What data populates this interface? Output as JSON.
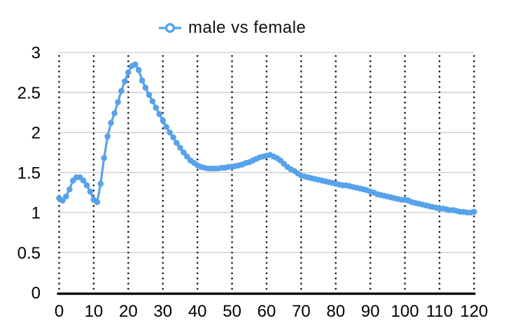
{
  "chart_data": {
    "type": "line",
    "title": "",
    "legend": {
      "label": "male vs female",
      "position": "top-center",
      "marker": "hollow-circle-on-line"
    },
    "xlabel": "",
    "ylabel": "",
    "xlim": [
      0,
      120
    ],
    "ylim": [
      0,
      3
    ],
    "x_ticks": [
      0,
      10,
      20,
      30,
      40,
      50,
      60,
      70,
      80,
      90,
      100,
      110,
      120
    ],
    "y_ticks": [
      "0",
      "0.5",
      "1",
      "1.5",
      "2",
      "2.5",
      "3"
    ],
    "grid": {
      "horizontal": "solid light gray at each 0.5",
      "vertical": "dotted black at each x tick"
    },
    "x_start": 0,
    "x_step": 1,
    "series": [
      {
        "name": "male vs female",
        "marker": "filled-circle",
        "values": [
          1.18,
          1.15,
          1.2,
          1.29,
          1.4,
          1.44,
          1.44,
          1.4,
          1.34,
          1.26,
          1.16,
          1.13,
          1.36,
          1.68,
          1.95,
          2.12,
          2.24,
          2.38,
          2.52,
          2.64,
          2.75,
          2.83,
          2.85,
          2.78,
          2.65,
          2.56,
          2.47,
          2.39,
          2.31,
          2.23,
          2.15,
          2.07,
          2.0,
          1.94,
          1.87,
          1.81,
          1.75,
          1.7,
          1.65,
          1.62,
          1.59,
          1.57,
          1.56,
          1.55,
          1.55,
          1.55,
          1.55,
          1.56,
          1.56,
          1.57,
          1.57,
          1.58,
          1.59,
          1.6,
          1.62,
          1.63,
          1.65,
          1.67,
          1.69,
          1.7,
          1.71,
          1.72,
          1.7,
          1.68,
          1.65,
          1.61,
          1.57,
          1.54,
          1.52,
          1.49,
          1.46,
          1.45,
          1.44,
          1.43,
          1.42,
          1.41,
          1.4,
          1.39,
          1.38,
          1.37,
          1.36,
          1.35,
          1.34,
          1.34,
          1.33,
          1.32,
          1.31,
          1.3,
          1.29,
          1.28,
          1.26,
          1.25,
          1.23,
          1.22,
          1.21,
          1.2,
          1.19,
          1.18,
          1.17,
          1.16,
          1.16,
          1.15,
          1.13,
          1.12,
          1.11,
          1.1,
          1.09,
          1.08,
          1.07,
          1.06,
          1.05,
          1.05,
          1.04,
          1.03,
          1.03,
          1.02,
          1.01,
          1.01,
          1.0,
          1.0,
          1.01
        ]
      }
    ],
    "colors": {
      "series": "#58a2ea",
      "gridline": "#c9c9c9",
      "dotted_gridline": "#1a1a1a",
      "axis": "#000000",
      "text": "#000000"
    }
  }
}
